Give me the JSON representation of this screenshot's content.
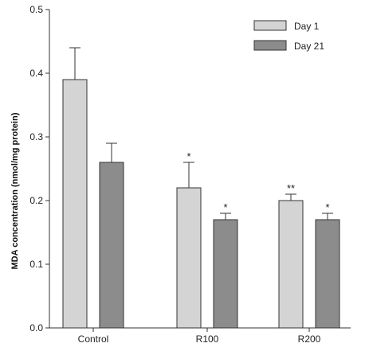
{
  "chart_data": {
    "type": "bar",
    "ylabel": "MDA concentration (nmol/mg protein)",
    "xlabel": "",
    "ylim": [
      0,
      0.5
    ],
    "yticks": [
      "0.0",
      "0.1",
      "0.2",
      "0.3",
      "0.4",
      "0.5"
    ],
    "categories": [
      "Control",
      "R100",
      "R200"
    ],
    "series": [
      {
        "name": "Day 1",
        "color": "#d4d4d4",
        "values": [
          0.39,
          0.22,
          0.2
        ],
        "errors": [
          0.05,
          0.04,
          0.01
        ],
        "significance": [
          "",
          "*",
          "**"
        ]
      },
      {
        "name": "Day 21",
        "color": "#8c8c8c",
        "values": [
          0.26,
          0.17,
          0.17
        ],
        "errors": [
          0.03,
          0.01,
          0.01
        ],
        "significance": [
          "",
          "*",
          "*"
        ]
      }
    ],
    "legend_position": "top-right",
    "grid": false
  }
}
